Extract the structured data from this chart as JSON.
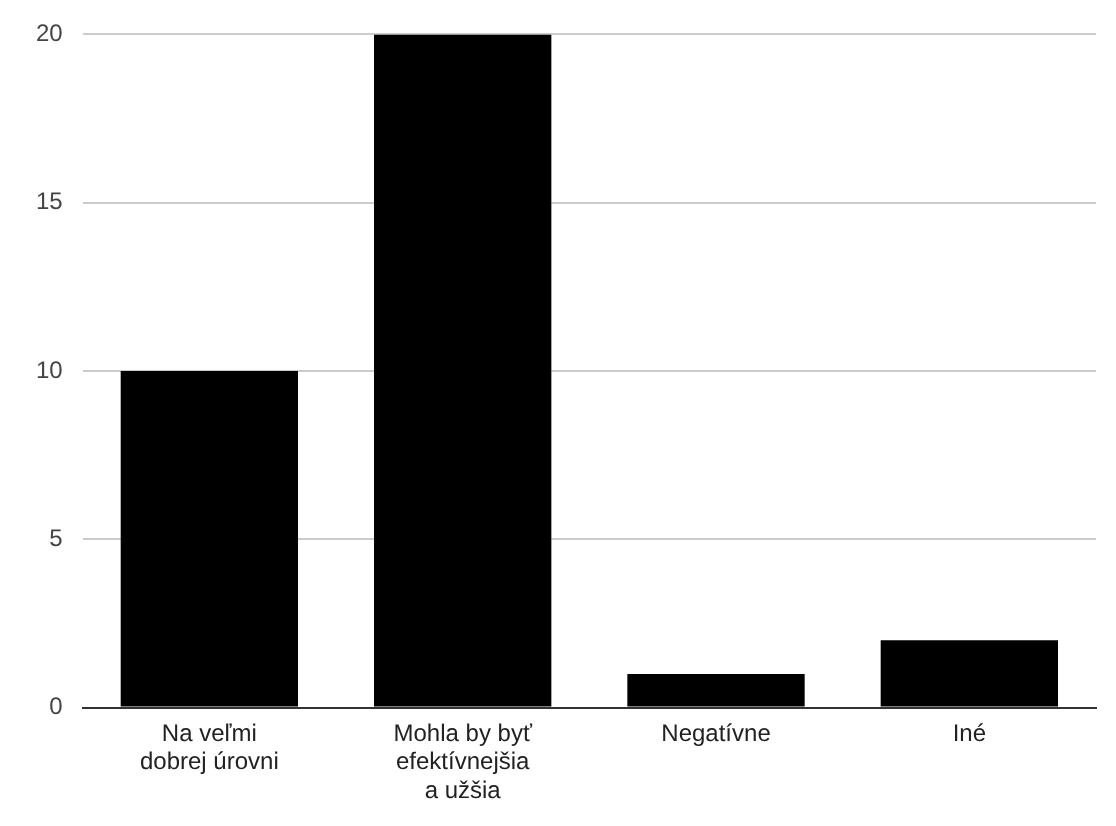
{
  "chart_data": {
    "type": "bar",
    "categories": [
      "Na veľmi dobrej úrovni",
      "Mohla by byť efektívnejšia a užšia",
      "Negatívne",
      "Iné"
    ],
    "values": [
      10,
      20,
      1,
      2
    ],
    "color": "#000000",
    "ylim": [
      0,
      20
    ],
    "yticks": [
      0,
      5,
      10,
      15,
      20
    ],
    "grid": "y",
    "legend": false
  }
}
